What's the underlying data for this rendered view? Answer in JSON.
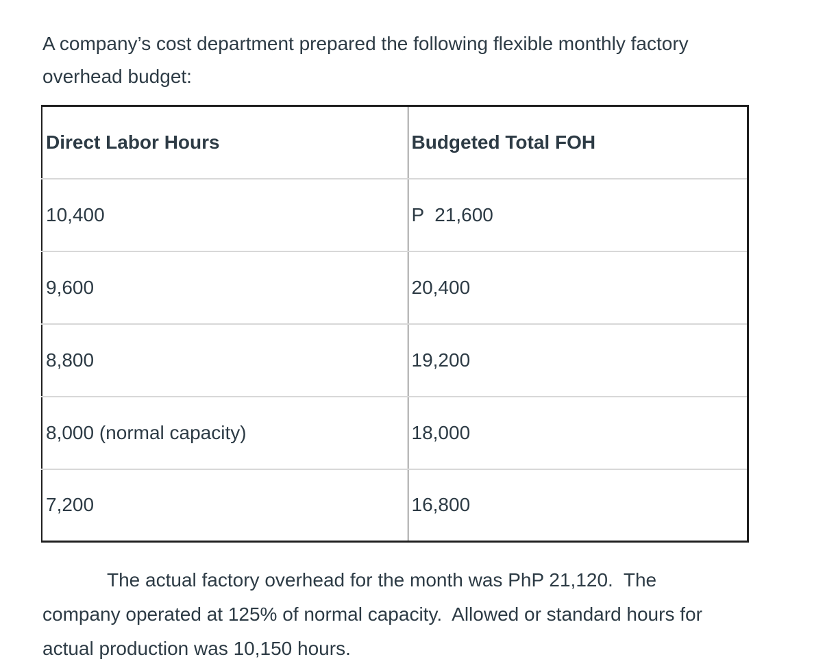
{
  "intro": {
    "lines": [
      "A company’s cost department prepared the following flexible monthly factory",
      "overhead budget:"
    ]
  },
  "table": {
    "headers": [
      "Direct Labor Hours",
      "Budgeted Total FOH"
    ],
    "rows": [
      [
        "10,400",
        "P  21,600"
      ],
      [
        "9,600",
        "20,400"
      ],
      [
        "8,800",
        "19,200"
      ],
      [
        "8,000 (normal capacity)",
        "18,000"
      ],
      [
        "7,200",
        "16,800"
      ]
    ]
  },
  "closing": {
    "lines": [
      "The actual factory overhead for the month was PhP 21,120.  The",
      "company operated at 125% of normal capacity.  Allowed or standard hours for",
      "actual production was 10,150 hours."
    ]
  },
  "colors": {
    "text": "#2d3b45",
    "border_dark": "#1f1f1f",
    "divider": "#d8d8d8",
    "background": "#ffffff"
  }
}
